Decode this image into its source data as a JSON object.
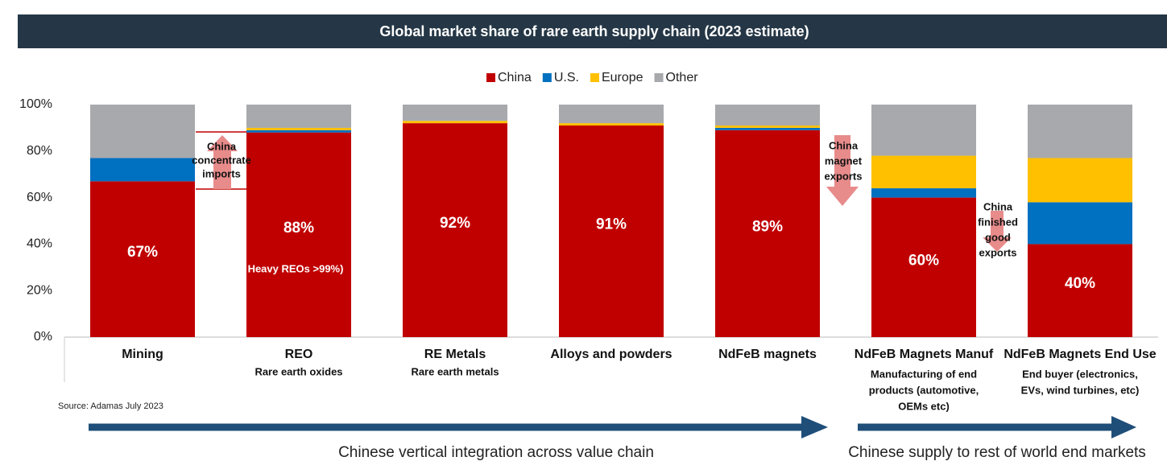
{
  "chart_data": {
    "type": "stacked_bar",
    "title": "Global market share of rare earth supply chain (2023 estimate)",
    "categories": [
      "Mining",
      "REO",
      "RE Metals",
      "Alloys and powders",
      "NdFeB magnets",
      "NdFeB Magnets Manuf",
      "NdFeB Magnets End Use"
    ],
    "category_sublabels": [
      [],
      [
        "Rare earth oxides"
      ],
      [
        "Rare earth metals"
      ],
      [],
      [],
      [
        "Manufacturing of end",
        "products (automotive,",
        "OEMs etc)"
      ],
      [
        "End buyer (electronics,",
        "EVs, wind turbines, etc)"
      ]
    ],
    "series": [
      {
        "name": "China",
        "color": "#c00000",
        "values": [
          67,
          88,
          92,
          91,
          89,
          60,
          40
        ],
        "value_labels": [
          "67%",
          "88%",
          "92%",
          "91%",
          "89%",
          "60%",
          "40%"
        ]
      },
      {
        "name": "U.S.",
        "color": "#0070c0",
        "values": [
          10,
          1,
          0,
          0,
          1,
          4,
          18
        ]
      },
      {
        "name": "Europe",
        "color": "#ffc000",
        "values": [
          0,
          1,
          1,
          1,
          1,
          14,
          19
        ]
      },
      {
        "name": "Other",
        "color": "#a7a9ac",
        "values": [
          23,
          10,
          7,
          8,
          9,
          22,
          23
        ]
      }
    ],
    "ylim": [
      0,
      100
    ],
    "yticks": [
      {
        "value": 0,
        "label": "0%"
      },
      {
        "value": 20,
        "label": "20%"
      },
      {
        "value": 40,
        "label": "40%"
      },
      {
        "value": 60,
        "label": "60%"
      },
      {
        "value": 80,
        "label": "80%"
      },
      {
        "value": 100,
        "label": "100%"
      }
    ],
    "legend": "top",
    "annotations": {
      "heavy_reo": "Heavy REOs >99%)",
      "concentrate": [
        "China",
        "concentrate",
        "imports"
      ],
      "magnet_exports": [
        "China",
        "magnet",
        "exports"
      ],
      "finished_exports": [
        "China",
        "finished",
        "good",
        "exports"
      ]
    },
    "source": "Source: Adamas July 2023",
    "footer_left": "Chinese vertical integration across value chain",
    "footer_right": "Chinese supply to rest of world end markets"
  }
}
